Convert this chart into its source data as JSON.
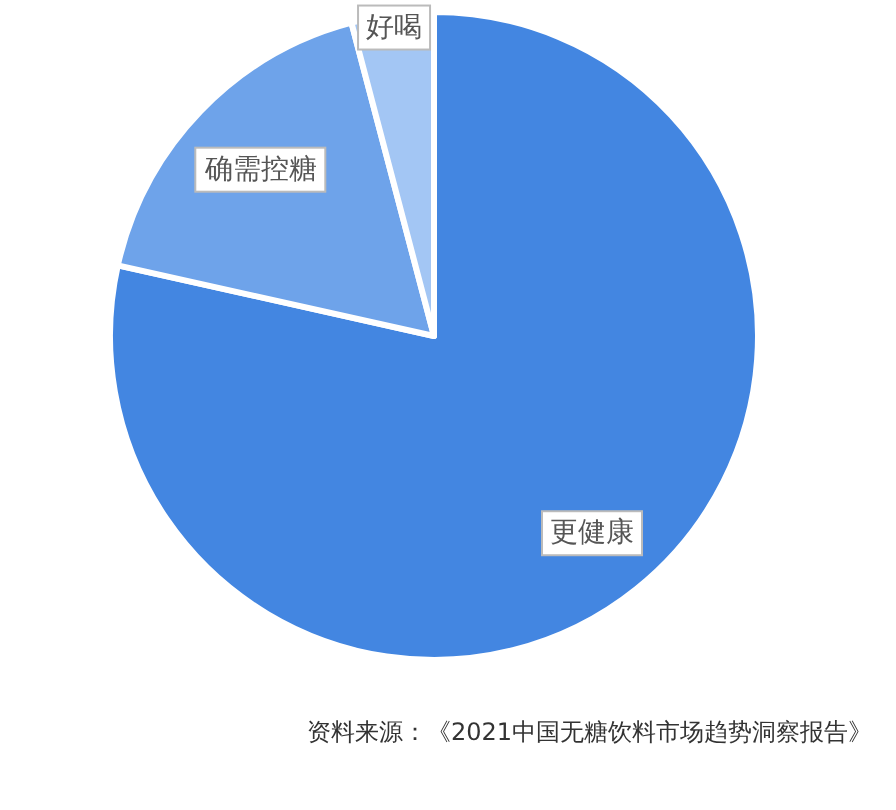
{
  "chart_data": {
    "type": "pie",
    "categories": [
      "更健康",
      "确需控糖",
      "好喝"
    ],
    "values": [
      78.5,
      17.4,
      4.1
    ],
    "colors": [
      "#4386e1",
      "#6ea3ea",
      "#a3c6f4"
    ],
    "annotations": [
      "资料来源：《2021中国无糖饮料市场趋势洞察报告》"
    ]
  }
}
